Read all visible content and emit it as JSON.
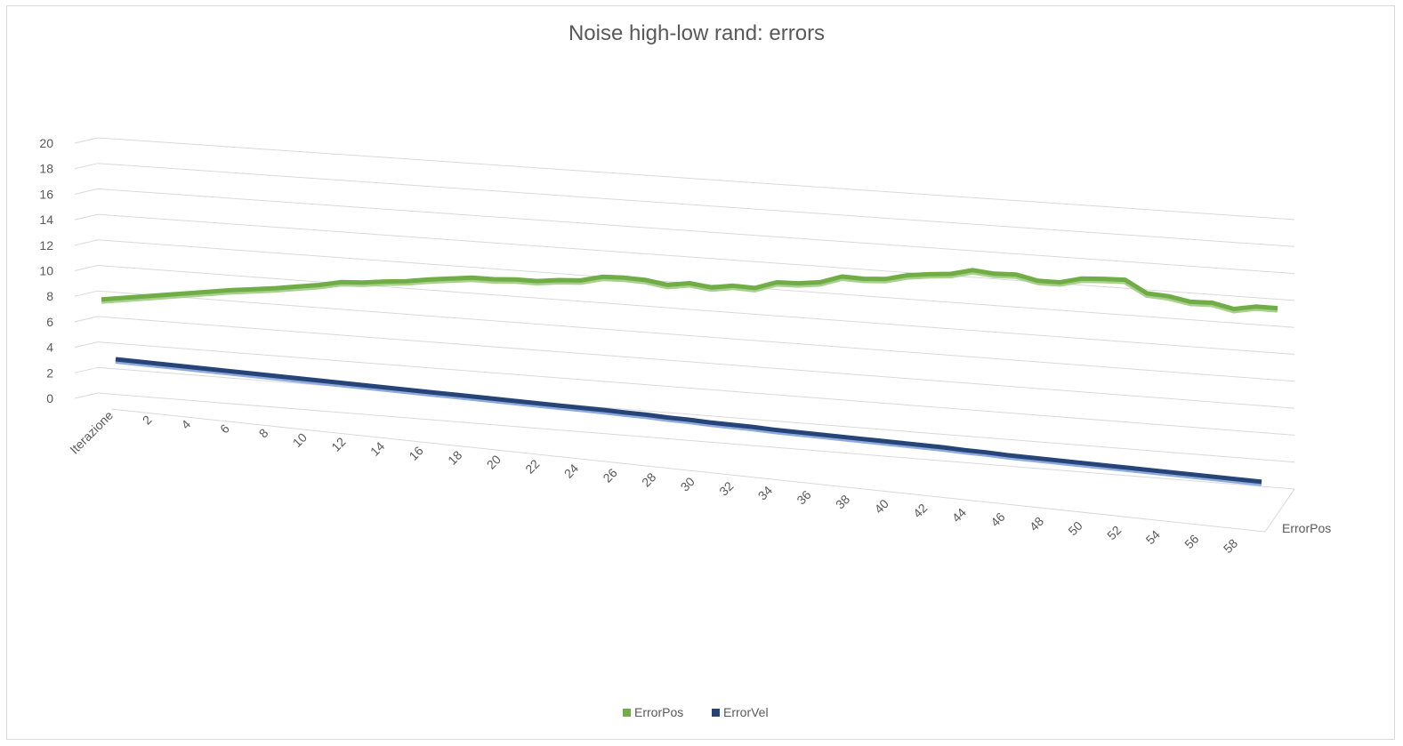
{
  "chart_data": {
    "type": "line",
    "title": "Noise high-low rand: errors",
    "ylim": [
      0,
      20
    ],
    "yticks": [
      "0",
      "2",
      "4",
      "6",
      "8",
      "10",
      "12",
      "14",
      "16",
      "18",
      "20"
    ],
    "xtick_first": "Iterazione",
    "xticks": [
      "2",
      "4",
      "6",
      "8",
      "10",
      "12",
      "14",
      "16",
      "18",
      "20",
      "22",
      "24",
      "26",
      "28",
      "30",
      "32",
      "34",
      "36",
      "38",
      "40",
      "42",
      "44",
      "46",
      "48",
      "50",
      "52",
      "54",
      "56",
      "58"
    ],
    "depth_label": "ErrorPos",
    "grid": true,
    "legend_position": "bottom",
    "series": [
      {
        "name": "ErrorPos",
        "color": "#70ad47",
        "values": [
          7.2,
          7.45,
          7.7,
          7.95,
          8.2,
          8.45,
          8.7,
          8.9,
          9.1,
          9.35,
          9.6,
          9.95,
          10.05,
          10.25,
          10.4,
          10.65,
          10.85,
          11.05,
          11.05,
          11.15,
          11.15,
          11.35,
          11.45,
          11.85,
          11.9,
          11.85,
          11.6,
          11.85,
          11.65,
          11.9,
          11.85,
          12.4,
          12.45,
          12.65,
          13.2,
          13.15,
          13.25,
          13.65,
          13.85,
          14.0,
          14.4,
          14.25,
          14.3,
          13.95,
          13.95,
          14.35,
          14.45,
          14.5,
          13.6,
          13.5,
          13.2,
          13.25,
          12.9,
          13.2,
          13.2
        ]
      },
      {
        "name": "ErrorVel",
        "color": "#264478",
        "values": [
          2.8,
          2.75,
          2.7,
          2.65,
          2.6,
          2.55,
          2.5,
          2.45,
          2.4,
          2.35,
          2.3,
          2.25,
          2.2,
          2.15,
          2.1,
          2.05,
          2.0,
          1.95,
          1.9,
          1.85,
          1.8,
          1.75,
          1.72,
          1.68,
          1.6,
          1.55,
          1.45,
          1.4,
          1.3,
          1.25,
          1.2,
          1.1,
          1.05,
          1.0,
          0.95,
          0.9,
          0.85,
          0.8,
          0.75,
          0.7,
          0.6,
          0.55,
          0.45,
          0.4,
          0.35,
          0.3,
          0.25,
          0.2,
          0.15,
          0.1,
          0.05,
          0.0,
          -0.05,
          -0.1,
          -0.15
        ]
      }
    ]
  }
}
